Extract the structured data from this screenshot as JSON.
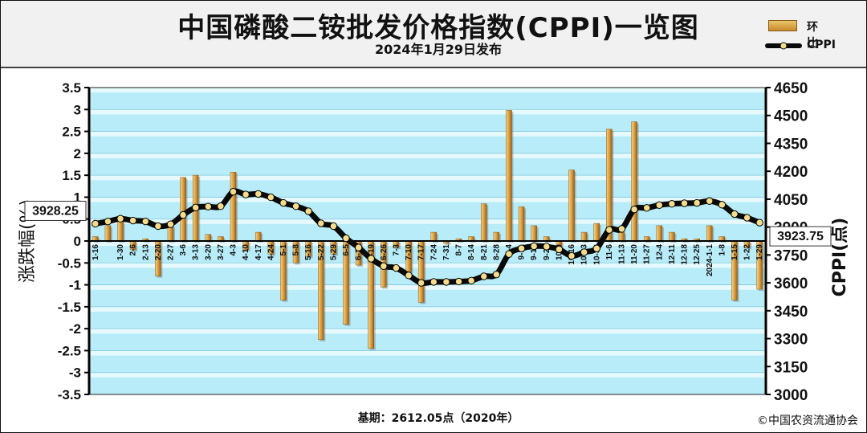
{
  "header": {
    "title": "中国磷酸二铵批发价格指数(CPPI)一览图",
    "subtitle": "2024年1月29日发布"
  },
  "legend": {
    "bar_label": "环比",
    "line_label": "CPPI"
  },
  "footer": {
    "base_note": "基期：2612.05点（2020年）",
    "copyright": "©中国农资流通协会"
  },
  "colors": {
    "plot_band": "#b7ecf8",
    "plot_stripe": "#e6fafe",
    "bar": "#d99a3a",
    "line": "#0a0a0a",
    "marker": "#f4dc8c"
  },
  "chart_data": {
    "type": "bar+line",
    "ylabel_left": "涨跌幅(%)",
    "ylabel_right": "CPPI(点)",
    "ylim_left": [
      -3.5,
      3.5
    ],
    "ylim_right": [
      3000,
      4650
    ],
    "yticks_left": [
      "3.5",
      "3",
      "2.5",
      "2",
      "1.5",
      "1",
      "0.5",
      "0",
      "-0.5",
      "-1",
      "-1.5",
      "-2",
      "-2.5",
      "-3",
      "-3.5"
    ],
    "yticks_right": [
      "4650",
      "4500",
      "4350",
      "4200",
      "4050",
      "3900",
      "3750",
      "3600",
      "3450",
      "3300",
      "3150",
      "3000"
    ],
    "categories": [
      "1-16",
      "1-23",
      "1-30",
      "2-6",
      "2-13",
      "2-20",
      "2-27",
      "3-6",
      "3-13",
      "3-20",
      "3-27",
      "4-3",
      "4-10",
      "4-17",
      "4-24",
      "5-1",
      "5-8",
      "5-16",
      "5-22",
      "5-29",
      "6-5",
      "6-12",
      "6-19",
      "6-26",
      "7-3",
      "7-10",
      "7-17",
      "7-24",
      "7-31",
      "8-7",
      "8-14",
      "8-21",
      "8-28",
      "9-4",
      "9-11",
      "9-18",
      "9-25",
      "10-9",
      "10-16",
      "10-23",
      "10-30",
      "11-6",
      "11-13",
      "11-20",
      "11-27",
      "12-4",
      "12-11",
      "12-18",
      "12-25",
      "2024-1-1",
      "1-8",
      "1-15",
      "1-22",
      "1-29"
    ],
    "x_tick_labels": [
      "1-16",
      "",
      "1-30",
      "2-6",
      "2-13",
      "2-20",
      "2-27",
      "3-6",
      "3-13",
      "3-20",
      "3-27",
      "4-3",
      "4-10",
      "4-17",
      "4-24",
      "5-1",
      "5-8",
      "5-16",
      "5-22",
      "5-29",
      "6-5",
      "6-12",
      "6-19",
      "6-26",
      "7-3",
      "7-10",
      "7-17",
      "7-24",
      "7-31",
      "8-7",
      "8-14",
      "8-21",
      "8-28",
      "9-4",
      "9-11",
      "9-18",
      "9-25",
      "10-9",
      "10-16",
      "10-23",
      "10-30",
      "11-6",
      "11-13",
      "11-20",
      "11-27",
      "12-4",
      "12-11",
      "12-18",
      "12-25",
      "2024-1-1",
      "1-8",
      "1-15",
      "1-22",
      "1-29"
    ],
    "series": [
      {
        "name": "环比",
        "axis": "left",
        "type": "bar",
        "values": [
          0.1,
          0.35,
          0.55,
          -0.2,
          0.05,
          -0.8,
          0.35,
          1.45,
          1.5,
          0.15,
          0.1,
          1.57,
          -0.2,
          0.2,
          -0.3,
          -1.35,
          -0.5,
          -0.35,
          -2.25,
          -0.3,
          -1.9,
          -0.55,
          -2.45,
          -1.05,
          -0.15,
          -0.7,
          -1.4,
          0.2,
          -0.05,
          0.05,
          0.1,
          0.85,
          0.2,
          2.98,
          0.78,
          0.35,
          0.1,
          -0.12,
          1.62,
          0.2,
          0.4,
          2.55,
          0.2,
          2.72,
          0.1,
          0.35,
          0.2,
          0.05,
          0.05,
          0.35,
          0.1,
          -1.35,
          -0.15,
          -1.1
        ]
      },
      {
        "name": "CPPI",
        "axis": "right",
        "type": "line",
        "values": [
          3918,
          3930,
          3945,
          3935,
          3930,
          3905,
          3915,
          3965,
          4005,
          4010,
          4012,
          4090,
          4075,
          4078,
          4060,
          4030,
          4012,
          3985,
          3920,
          3905,
          3840,
          3790,
          3730,
          3690,
          3680,
          3640,
          3600,
          3605,
          3605,
          3607,
          3612,
          3635,
          3645,
          3755,
          3785,
          3797,
          3795,
          3780,
          3745,
          3765,
          3785,
          3885,
          3890,
          3995,
          4003,
          4018,
          4025,
          4028,
          4030,
          4040,
          4020,
          3970,
          3950,
          3923.75
        ]
      }
    ],
    "annotations": [
      {
        "label": "3928.25"
      },
      {
        "label": "3923.75"
      }
    ],
    "grid": true
  }
}
